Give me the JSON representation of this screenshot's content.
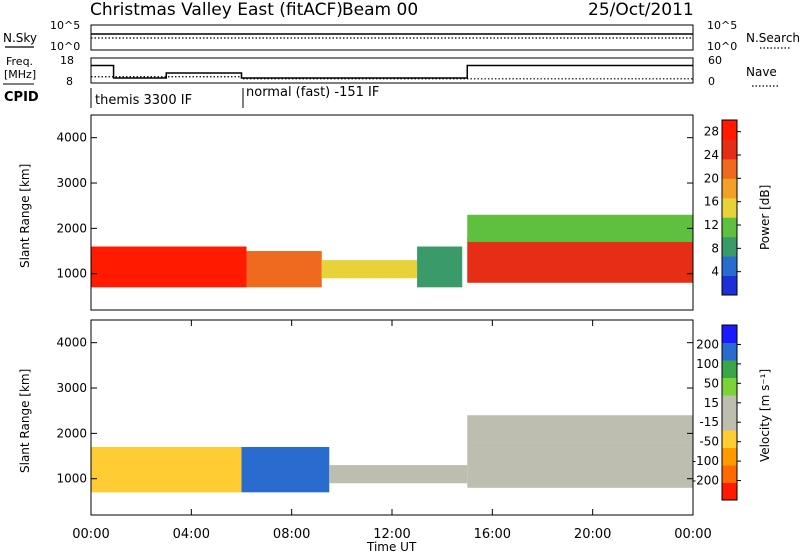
{
  "header": {
    "title": "Christmas Valley East (fitACF)",
    "beam": "Beam 00",
    "date": "25/Oct/2011"
  },
  "colors": {
    "power_scale": [
      "#1e2fd8",
      "#2a6bd0",
      "#3a9a6a",
      "#5fbf3f",
      "#e8d23a",
      "#f2a02a",
      "#ef6a1e",
      "#e62e16",
      "#ff1a00"
    ],
    "velocity_scale": [
      "#ff1a00",
      "#ff6a00",
      "#ff9a00",
      "#ffcc33",
      "#bdbdb0",
      "#bdbdb0",
      "#7bd33a",
      "#3aa64a",
      "#2a6bd0",
      "#1a1aff"
    ],
    "ground_scatter": "#bdbdb0"
  },
  "chart_data": [
    {
      "type": "line",
      "panel": "N.Sky / N.Search",
      "left_label": "N.Sky",
      "right_label": "N.Search",
      "left_ticks": [
        "10^5",
        "10^0"
      ],
      "right_ticks": [
        "10^5",
        "10^0"
      ]
    },
    {
      "type": "line",
      "panel": "Freq. [MHz] / Nave",
      "left_label_line1": "Freq.",
      "left_label_line2": "[MHz]",
      "right_label": "Nave",
      "left_ticks": [
        "18",
        "8"
      ],
      "right_ticks": [
        "60",
        "0"
      ],
      "x": [
        0,
        0.9,
        3.0,
        6.0,
        15.0,
        24.0
      ],
      "freq_mhz": [
        15,
        10,
        12,
        10,
        15,
        15
      ],
      "nave": [
        15,
        15,
        15,
        10,
        10,
        10
      ]
    },
    {
      "type": "table",
      "panel": "CPID",
      "label": "CPID",
      "segments": [
        {
          "label": "themis 3300 IF",
          "start_hour": 0,
          "end_hour": 6
        },
        {
          "label": "normal (fast) -151 IF",
          "start_hour": 6,
          "end_hour": 24
        }
      ]
    },
    {
      "type": "heatmap",
      "panel": "Power",
      "ylabel": "Slant Range [km]",
      "yticks": [
        "1000",
        "2000",
        "3000",
        "4000"
      ],
      "ylim": [
        200,
        4500
      ],
      "colorbar_label": "Power [dB]",
      "colorbar_ticks": [
        "4",
        "8",
        "12",
        "16",
        "20",
        "24",
        "28"
      ],
      "colorbar_range": [
        0,
        30
      ],
      "bands": [
        {
          "start_hour": 0.0,
          "end_hour": 6.2,
          "range_low": 700,
          "range_high": 1600,
          "power_db": 27
        },
        {
          "start_hour": 6.2,
          "end_hour": 9.2,
          "range_low": 700,
          "range_high": 1500,
          "power_db": 22
        },
        {
          "start_hour": 9.2,
          "end_hour": 13.0,
          "range_low": 900,
          "range_high": 1300,
          "power_db": 14
        },
        {
          "start_hour": 13.0,
          "end_hour": 14.8,
          "range_low": 700,
          "range_high": 1600,
          "power_db": 8
        },
        {
          "start_hour": 15.0,
          "end_hour": 24.0,
          "range_low": 800,
          "range_high": 1800,
          "power_db": 26
        },
        {
          "start_hour": 15.0,
          "end_hour": 24.0,
          "range_low": 1700,
          "range_high": 2300,
          "power_db": 10
        }
      ]
    },
    {
      "type": "heatmap",
      "panel": "Velocity",
      "ylabel": "Slant Range [km]",
      "yticks": [
        "1000",
        "2000",
        "3000",
        "4000"
      ],
      "ylim": [
        200,
        4500
      ],
      "xlabel": "Time UT",
      "xticks": [
        "00:00",
        "04:00",
        "08:00",
        "12:00",
        "16:00",
        "20:00",
        "00:00"
      ],
      "xlim": [
        0,
        24
      ],
      "colorbar_label": "Velocity [m s⁻¹]",
      "colorbar_ticks": [
        "-200",
        "-100",
        "-50",
        "-15",
        "15",
        "50",
        "100",
        "200"
      ],
      "colorbar_range": [
        -250,
        250
      ],
      "bands": [
        {
          "start_hour": 0.0,
          "end_hour": 6.0,
          "range_low": 700,
          "range_high": 1700,
          "velocity": -80
        },
        {
          "start_hour": 6.0,
          "end_hour": 9.5,
          "range_low": 700,
          "range_high": 1700,
          "velocity": 150
        },
        {
          "start_hour": 9.5,
          "end_hour": 15.0,
          "range_low": 900,
          "range_high": 1300,
          "velocity": -30
        },
        {
          "start_hour": 15.0,
          "end_hour": 24.0,
          "range_low": 800,
          "range_high": 1800,
          "velocity": 0
        },
        {
          "start_hour": 15.0,
          "end_hour": 24.0,
          "range_low": 1800,
          "range_high": 2400,
          "velocity": 0
        }
      ]
    }
  ]
}
